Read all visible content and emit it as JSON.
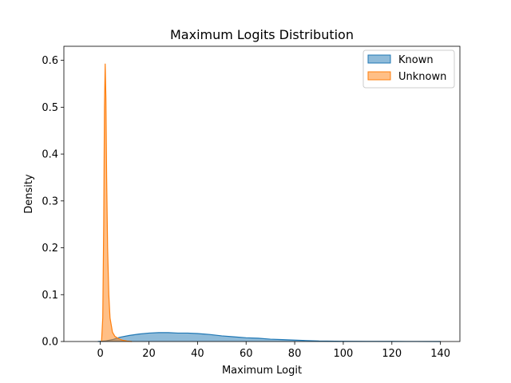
{
  "chart_data": {
    "type": "area",
    "title": "Maximum Logits Distribution",
    "xlabel": "Maximum Logit",
    "ylabel": "Density",
    "xlim": [
      -15,
      148
    ],
    "ylim": [
      0,
      0.63
    ],
    "xticks": [
      0,
      20,
      40,
      60,
      80,
      100,
      120,
      140
    ],
    "yticks": [
      0.0,
      0.1,
      0.2,
      0.3,
      0.4,
      0.5,
      0.6
    ],
    "xtick_labels": [
      "0",
      "20",
      "40",
      "60",
      "80",
      "100",
      "120",
      "140"
    ],
    "ytick_labels": [
      "0.0",
      "0.1",
      "0.2",
      "0.3",
      "0.4",
      "0.5",
      "0.6"
    ],
    "grid": false,
    "legend_position": "top-right",
    "series": [
      {
        "name": "Known",
        "color": "#1f77b4",
        "fill_opacity": 0.5,
        "x": [
          -1,
          2,
          5,
          8,
          12,
          16,
          20,
          24,
          28,
          32,
          36,
          40,
          45,
          50,
          55,
          60,
          65,
          70,
          75,
          80,
          85,
          90,
          100,
          110,
          120,
          130,
          140
        ],
        "y": [
          0.0,
          0.001,
          0.004,
          0.009,
          0.013,
          0.016,
          0.018,
          0.019,
          0.019,
          0.018,
          0.018,
          0.017,
          0.015,
          0.012,
          0.01,
          0.008,
          0.007,
          0.005,
          0.004,
          0.003,
          0.002,
          0.001,
          0.0005,
          0.0003,
          0.0002,
          0.0001,
          0.0
        ]
      },
      {
        "name": "Unknown",
        "color": "#ff7f0e",
        "fill_opacity": 0.5,
        "x": [
          0.5,
          1.0,
          1.4,
          1.7,
          2.0,
          2.3,
          2.6,
          3.0,
          3.5,
          4.0,
          5.0,
          6.0,
          7.5,
          9.0,
          11.0,
          13.0
        ],
        "y": [
          0.0,
          0.05,
          0.25,
          0.5,
          0.593,
          0.52,
          0.35,
          0.2,
          0.1,
          0.05,
          0.02,
          0.011,
          0.006,
          0.003,
          0.001,
          0.0
        ]
      }
    ]
  }
}
